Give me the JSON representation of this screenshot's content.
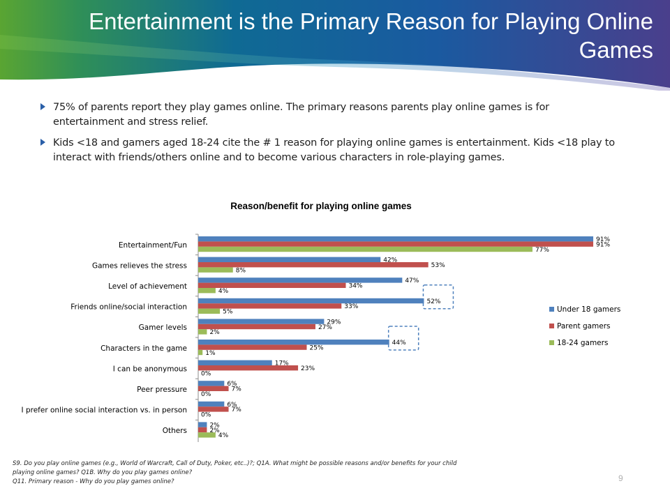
{
  "slide": {
    "title": "Entertainment is the Primary Reason for Playing Online Games",
    "bullets": [
      "75% of parents report they play games online.  The primary reasons parents play online games is for entertainment and stress relief.",
      "Kids <18 and gamers aged 18-24 cite the # 1 reason for playing online games is entertainment. Kids <18 play to interact with friends/others online and to become various characters in role-playing games."
    ],
    "footnotes": [
      "S9. Do you play online games (e.g., World of Warcraft, Call of Duty, Poker, etc..)?; Q1A. What might be possible reasons and/or benefits for your child",
      "playing online games?  Q1B. Why do you play games online?",
      "Q11. Primary reason - Why do you play games online?"
    ],
    "page_number": "9",
    "icons": {
      "bullet": "arrow-bullet-icon"
    }
  },
  "colors": {
    "under18": "#4f81bd",
    "parent": "#c0504d",
    "age1824": "#9bbb59",
    "highlight_box": "#4f81bd",
    "banner_green": "#5aa532",
    "banner_blue": "#0f5a96",
    "banner_purple": "#4a3f8c"
  },
  "chart_data": {
    "type": "bar",
    "orientation": "horizontal",
    "title": "Reason/benefit for playing online games",
    "categories": [
      "Entertainment/Fun",
      "Games relieves the stress",
      "Level of achievement",
      "Friends online/social interaction",
      "Gamer levels",
      "Characters in the game",
      "I can be anonymous",
      "Peer pressure",
      "I prefer online social interaction vs. in person",
      "Others"
    ],
    "series": [
      {
        "name": "Under 18 gamers",
        "color": "#4f81bd",
        "values": [
          91,
          42,
          47,
          52,
          29,
          44,
          17,
          6,
          6,
          2
        ],
        "labels": [
          "91%",
          "42%",
          "47%",
          "52%",
          "29%",
          "44%",
          "17%",
          "6%",
          "6%",
          "2%"
        ]
      },
      {
        "name": "Parent gamers",
        "color": "#c0504d",
        "values": [
          91,
          53,
          34,
          33,
          27,
          25,
          23,
          7,
          7,
          2
        ],
        "labels": [
          "91%",
          "53%",
          "34%",
          "33%",
          "27%",
          "25%",
          "23%",
          "7%",
          "7%",
          "2%"
        ]
      },
      {
        "name": "18-24 gamers",
        "color": "#9bbb59",
        "values": [
          77,
          8,
          4,
          5,
          2,
          1,
          0,
          0,
          0,
          4
        ],
        "labels": [
          "77%",
          "8%",
          "4%",
          "5%",
          "2%",
          "1%",
          "0%",
          "0%",
          "0%",
          "4%"
        ]
      }
    ],
    "highlighted": [
      {
        "category": "Friends online/social interaction",
        "series": "Under 18 gamers"
      },
      {
        "category": "Characters in the game",
        "series": "Under 18 gamers"
      }
    ],
    "xlim": [
      0,
      100
    ],
    "grid": false,
    "legend": "right"
  }
}
